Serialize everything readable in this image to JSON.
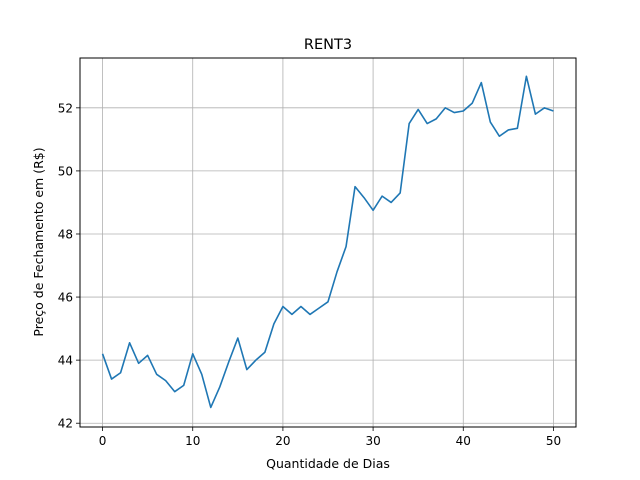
{
  "chart_data": {
    "type": "line",
    "title": "RENT3",
    "xlabel": "Quantidade de Dias",
    "ylabel": "Preço de Fechamento em (R$)",
    "xlim": [
      -2.5,
      52.5
    ],
    "ylim": [
      41.88,
      53.58
    ],
    "xticks": [
      0,
      10,
      20,
      30,
      40,
      50
    ],
    "yticks": [
      42,
      44,
      46,
      48,
      50,
      52
    ],
    "grid": true,
    "line_color": "#1f77b4",
    "series": [
      {
        "x": [
          0,
          1,
          2,
          3,
          4,
          5,
          6,
          7,
          8,
          9,
          10,
          11,
          12,
          13,
          14,
          15,
          16,
          17,
          18,
          19,
          20,
          21,
          22,
          23,
          24,
          25,
          26,
          27,
          28,
          29,
          30,
          31,
          32,
          33,
          34,
          35,
          36,
          37,
          38,
          39,
          40,
          41,
          42,
          43,
          44,
          45,
          46,
          47,
          48,
          49,
          50
        ],
        "values": [
          44.2,
          43.4,
          43.6,
          44.55,
          43.9,
          44.15,
          43.55,
          43.35,
          43.0,
          43.2,
          44.2,
          43.55,
          42.5,
          43.15,
          43.95,
          44.7,
          43.7,
          44.0,
          44.25,
          45.15,
          45.7,
          45.45,
          45.7,
          45.45,
          45.65,
          45.85,
          46.8,
          47.6,
          49.5,
          49.15,
          48.75,
          49.2,
          49.0,
          49.3,
          51.5,
          51.95,
          51.5,
          51.65,
          52.0,
          51.85,
          51.9,
          52.15,
          52.8,
          51.55,
          51.1,
          51.3,
          51.35,
          53.0,
          51.8,
          52.0,
          51.9
        ]
      }
    ]
  }
}
